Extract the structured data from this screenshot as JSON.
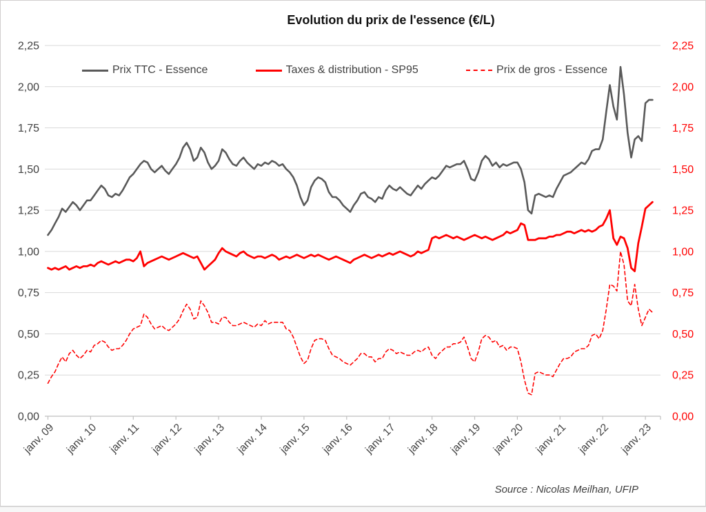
{
  "page": {
    "background": "#ffffff",
    "border_color": "#d0cece"
  },
  "chart": {
    "title": "Evolution du prix de l'essence (€/L)",
    "source_note": "Source : Nicolas Meilhan, UFIP",
    "legend": [
      {
        "label": "Prix TTC - Essence"
      },
      {
        "label": "Taxes & distribution - SP95"
      },
      {
        "label": "Prix de gros - Essence"
      }
    ],
    "colors": {
      "grid": "#d9d9d9",
      "axis": "#bfbfbf",
      "left_axis_labels": "#404040",
      "right_axis_labels": "#ff0000",
      "x_axis_labels": "#404040"
    }
  },
  "chart_data": {
    "type": "line",
    "title": "Evolution du prix de l'essence (€/L)",
    "xlabel": "",
    "ylabel": "€/L",
    "x_unit": "monthly, janv. 2009 to mars 2023",
    "x_tick_labels": [
      "janv. 09",
      "janv. 10",
      "janv. 11",
      "janv. 12",
      "janv. 13",
      "janv. 14",
      "janv. 15",
      "janv. 16",
      "janv. 17",
      "janv. 18",
      "janv. 19",
      "janv. 20",
      "janv. 21",
      "janv. 22",
      "janv. 23"
    ],
    "ylim": [
      0,
      2.25
    ],
    "grid": true,
    "legend_position": "top",
    "y_ticks": [
      {
        "value": 0.0,
        "label": "0,00"
      },
      {
        "value": 0.25,
        "label": "0,25"
      },
      {
        "value": 0.5,
        "label": "0,50"
      },
      {
        "value": 0.75,
        "label": "0,75"
      },
      {
        "value": 1.0,
        "label": "1,00"
      },
      {
        "value": 1.25,
        "label": "1,25"
      },
      {
        "value": 1.5,
        "label": "1,50"
      },
      {
        "value": 1.75,
        "label": "1,75"
      },
      {
        "value": 2.0,
        "label": "2,00"
      },
      {
        "value": 2.25,
        "label": "2,25"
      }
    ],
    "series": [
      {
        "name": "Prix TTC - Essence",
        "color": "#595959",
        "style": "solid",
        "values": [
          1.1,
          1.13,
          1.17,
          1.21,
          1.26,
          1.24,
          1.27,
          1.3,
          1.28,
          1.25,
          1.28,
          1.31,
          1.31,
          1.34,
          1.37,
          1.4,
          1.38,
          1.34,
          1.33,
          1.35,
          1.34,
          1.37,
          1.41,
          1.45,
          1.47,
          1.5,
          1.53,
          1.55,
          1.54,
          1.5,
          1.48,
          1.5,
          1.52,
          1.49,
          1.47,
          1.5,
          1.53,
          1.57,
          1.63,
          1.66,
          1.62,
          1.55,
          1.57,
          1.63,
          1.6,
          1.54,
          1.5,
          1.52,
          1.55,
          1.62,
          1.6,
          1.56,
          1.53,
          1.52,
          1.55,
          1.57,
          1.54,
          1.52,
          1.5,
          1.53,
          1.52,
          1.54,
          1.53,
          1.55,
          1.54,
          1.52,
          1.53,
          1.5,
          1.48,
          1.45,
          1.4,
          1.33,
          1.28,
          1.31,
          1.39,
          1.43,
          1.45,
          1.44,
          1.42,
          1.36,
          1.33,
          1.33,
          1.31,
          1.28,
          1.26,
          1.24,
          1.28,
          1.31,
          1.35,
          1.36,
          1.33,
          1.32,
          1.3,
          1.33,
          1.32,
          1.37,
          1.4,
          1.38,
          1.37,
          1.39,
          1.37,
          1.35,
          1.34,
          1.37,
          1.4,
          1.38,
          1.41,
          1.43,
          1.45,
          1.44,
          1.46,
          1.49,
          1.52,
          1.51,
          1.52,
          1.53,
          1.53,
          1.55,
          1.5,
          1.44,
          1.43,
          1.48,
          1.55,
          1.58,
          1.56,
          1.52,
          1.54,
          1.51,
          1.53,
          1.52,
          1.53,
          1.54,
          1.54,
          1.5,
          1.42,
          1.25,
          1.23,
          1.34,
          1.35,
          1.34,
          1.33,
          1.34,
          1.33,
          1.38,
          1.42,
          1.46,
          1.47,
          1.48,
          1.5,
          1.52,
          1.54,
          1.53,
          1.56,
          1.61,
          1.62,
          1.62,
          1.68,
          1.85,
          2.01,
          1.88,
          1.8,
          2.12,
          1.95,
          1.72,
          1.57,
          1.68,
          1.7,
          1.67,
          1.9,
          1.92,
          1.92
        ]
      },
      {
        "name": "Taxes & distribution - SP95",
        "color": "#ff0000",
        "style": "solid",
        "values": [
          0.9,
          0.89,
          0.9,
          0.89,
          0.9,
          0.91,
          0.89,
          0.9,
          0.91,
          0.9,
          0.91,
          0.91,
          0.92,
          0.91,
          0.93,
          0.94,
          0.93,
          0.92,
          0.93,
          0.94,
          0.93,
          0.94,
          0.95,
          0.95,
          0.94,
          0.96,
          1.0,
          0.91,
          0.93,
          0.94,
          0.95,
          0.96,
          0.97,
          0.96,
          0.95,
          0.96,
          0.97,
          0.98,
          0.99,
          0.98,
          0.97,
          0.96,
          0.97,
          0.93,
          0.89,
          0.91,
          0.93,
          0.95,
          0.99,
          1.02,
          1.0,
          0.99,
          0.98,
          0.97,
          0.99,
          1.0,
          0.98,
          0.97,
          0.96,
          0.97,
          0.97,
          0.96,
          0.97,
          0.98,
          0.97,
          0.95,
          0.96,
          0.97,
          0.96,
          0.97,
          0.98,
          0.97,
          0.96,
          0.97,
          0.98,
          0.97,
          0.98,
          0.97,
          0.96,
          0.95,
          0.96,
          0.97,
          0.96,
          0.95,
          0.94,
          0.93,
          0.95,
          0.96,
          0.97,
          0.98,
          0.97,
          0.96,
          0.97,
          0.98,
          0.97,
          0.98,
          0.99,
          0.98,
          0.99,
          1.0,
          0.99,
          0.98,
          0.97,
          0.98,
          1.0,
          0.99,
          1.0,
          1.01,
          1.08,
          1.09,
          1.08,
          1.09,
          1.1,
          1.09,
          1.08,
          1.09,
          1.08,
          1.07,
          1.08,
          1.09,
          1.1,
          1.09,
          1.08,
          1.09,
          1.08,
          1.07,
          1.08,
          1.09,
          1.1,
          1.12,
          1.11,
          1.12,
          1.13,
          1.17,
          1.16,
          1.07,
          1.07,
          1.07,
          1.08,
          1.08,
          1.08,
          1.09,
          1.09,
          1.1,
          1.1,
          1.11,
          1.12,
          1.12,
          1.11,
          1.12,
          1.13,
          1.12,
          1.13,
          1.12,
          1.13,
          1.15,
          1.16,
          1.2,
          1.25,
          1.08,
          1.04,
          1.09,
          1.08,
          1.02,
          0.9,
          0.88,
          1.05,
          1.15,
          1.26,
          1.28,
          1.3
        ]
      },
      {
        "name": "Prix de gros - Essence",
        "color": "#ff0000",
        "style": "dashed",
        "values": [
          0.2,
          0.24,
          0.27,
          0.32,
          0.36,
          0.33,
          0.38,
          0.4,
          0.37,
          0.35,
          0.37,
          0.4,
          0.39,
          0.43,
          0.44,
          0.46,
          0.45,
          0.42,
          0.4,
          0.41,
          0.41,
          0.43,
          0.46,
          0.5,
          0.53,
          0.54,
          0.55,
          0.62,
          0.6,
          0.56,
          0.53,
          0.54,
          0.55,
          0.53,
          0.52,
          0.54,
          0.56,
          0.59,
          0.64,
          0.68,
          0.65,
          0.59,
          0.6,
          0.7,
          0.67,
          0.63,
          0.57,
          0.57,
          0.56,
          0.6,
          0.6,
          0.57,
          0.55,
          0.55,
          0.56,
          0.57,
          0.56,
          0.55,
          0.54,
          0.56,
          0.55,
          0.58,
          0.56,
          0.57,
          0.57,
          0.57,
          0.57,
          0.53,
          0.52,
          0.48,
          0.42,
          0.36,
          0.32,
          0.34,
          0.41,
          0.46,
          0.47,
          0.47,
          0.46,
          0.41,
          0.37,
          0.36,
          0.35,
          0.33,
          0.32,
          0.31,
          0.33,
          0.35,
          0.38,
          0.38,
          0.36,
          0.36,
          0.33,
          0.35,
          0.35,
          0.39,
          0.41,
          0.4,
          0.38,
          0.39,
          0.38,
          0.37,
          0.37,
          0.39,
          0.4,
          0.39,
          0.41,
          0.42,
          0.37,
          0.35,
          0.38,
          0.4,
          0.42,
          0.42,
          0.44,
          0.44,
          0.45,
          0.48,
          0.42,
          0.35,
          0.33,
          0.39,
          0.47,
          0.49,
          0.48,
          0.45,
          0.46,
          0.42,
          0.43,
          0.4,
          0.42,
          0.42,
          0.41,
          0.33,
          0.22,
          0.14,
          0.13,
          0.26,
          0.27,
          0.26,
          0.25,
          0.25,
          0.24,
          0.28,
          0.32,
          0.35,
          0.35,
          0.36,
          0.39,
          0.4,
          0.41,
          0.41,
          0.43,
          0.49,
          0.5,
          0.47,
          0.52,
          0.65,
          0.8,
          0.79,
          0.76,
          1.0,
          0.92,
          0.7,
          0.67,
          0.8,
          0.65,
          0.55,
          0.6,
          0.65,
          0.63
        ]
      }
    ]
  }
}
